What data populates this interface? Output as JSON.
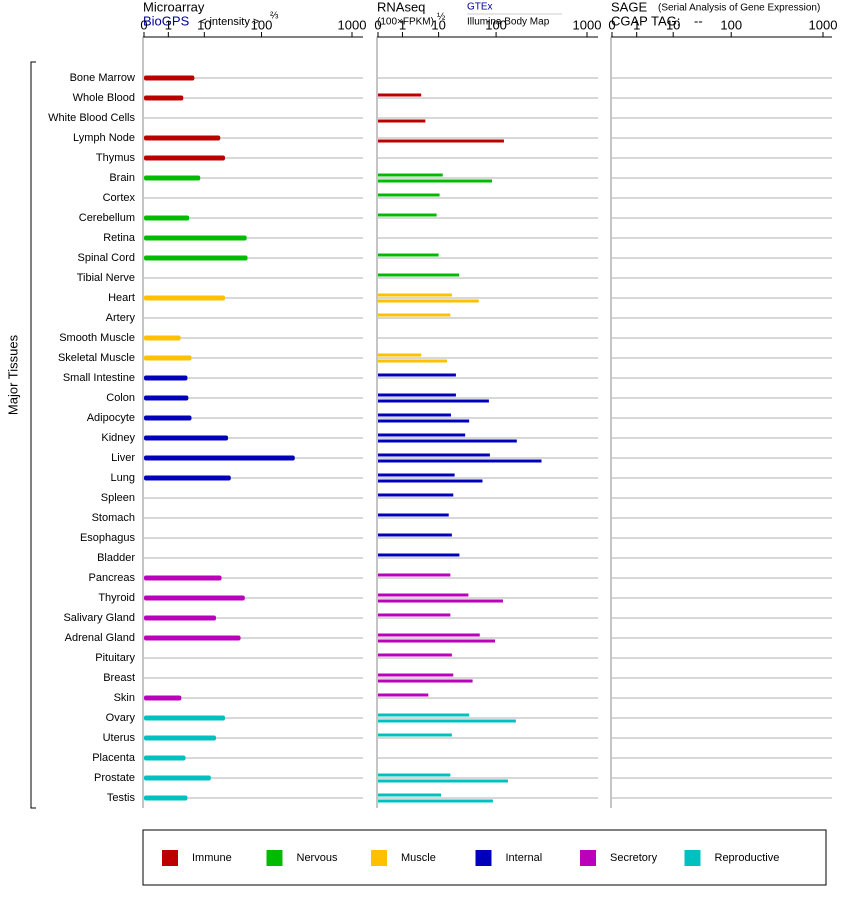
{
  "chart_data": {
    "type": "tissue-bars",
    "y_axis_label": "Major Tissues",
    "categories": [
      "Bone Marrow",
      "Whole Blood",
      "White Blood Cells",
      "Lymph Node",
      "Thymus",
      "Brain",
      "Cortex",
      "Cerebellum",
      "Retina",
      "Spinal Cord",
      "Tibial Nerve",
      "Heart",
      "Artery",
      "Smooth Muscle",
      "Skeletal Muscle",
      "Small Intestine",
      "Colon",
      "Adipocyte",
      "Kidney",
      "Liver",
      "Lung",
      "Spleen",
      "Stomach",
      "Esophagus",
      "Bladder",
      "Pancreas",
      "Thyroid",
      "Salivary Gland",
      "Adrenal Gland",
      "Pituitary",
      "Breast",
      "Skin",
      "Ovary",
      "Uterus",
      "Placenta",
      "Prostate",
      "Testis"
    ],
    "category_groups": [
      "Immune",
      "Immune",
      "Immune",
      "Immune",
      "Immune",
      "Nervous",
      "Nervous",
      "Nervous",
      "Nervous",
      "Nervous",
      "Nervous",
      "Muscle",
      "Muscle",
      "Muscle",
      "Muscle",
      "Internal",
      "Internal",
      "Internal",
      "Internal",
      "Internal",
      "Internal",
      "Internal",
      "Internal",
      "Internal",
      "Internal",
      "Secretory",
      "Secretory",
      "Secretory",
      "Secretory",
      "Secretory",
      "Secretory",
      "Secretory",
      "Reproductive",
      "Reproductive",
      "Reproductive",
      "Reproductive",
      "Reproductive"
    ],
    "legend": [
      {
        "name": "Immune",
        "color": "#bb0000"
      },
      {
        "name": "Nervous",
        "color": "#00bb00"
      },
      {
        "name": "Muscle",
        "color": "#ffc000"
      },
      {
        "name": "Internal",
        "color": "#0000bb"
      },
      {
        "name": "Secretory",
        "color": "#bb00bb"
      },
      {
        "name": "Reproductive",
        "color": "#00c0c0"
      }
    ],
    "panels": [
      {
        "title": "Microarray",
        "scale_label": "< intensity >",
        "scale_power": "⅔",
        "xlim": [
          0,
          1000
        ],
        "xticks": [
          0,
          1,
          10,
          100,
          1000
        ],
        "series": [
          {
            "name": "BioGPS",
            "values": [
              5.3,
              2.6,
              null,
              19,
              23,
              7.7,
              null,
              3.8,
              55,
              57,
              null,
              23,
              null,
              2.2,
              4.4,
              3.4,
              3.6,
              4.4,
              26,
              233,
              29,
              null,
              null,
              null,
              null,
              20,
              51,
              16,
              43,
              null,
              null,
              2.3,
              23,
              16,
              3.0,
              13,
              3.4
            ]
          }
        ]
      },
      {
        "title": "RNAseq",
        "scale_label": "(100×FPKM)",
        "scale_power": "½",
        "xlim": [
          0,
          1000
        ],
        "xticks": [
          0,
          1,
          10,
          100,
          1000
        ],
        "series": [
          {
            "name": "GTEx",
            "values": [
              null,
              3.3,
              null,
              null,
              null,
              11.8,
              10.4,
              8.8,
              null,
              10,
              22.8,
              17,
              16,
              null,
              3.3,
              20,
              20,
              16.4,
              29,
              78,
              19,
              18,
              15,
              17,
              23,
              16,
              33,
              16,
              52,
              17,
              18,
              5.2,
              34,
              17,
              null,
              16,
              11
            ]
          },
          {
            "name": "Illumina Body Map",
            "values": [
              null,
              null,
              4.3,
              122,
              null,
              85,
              null,
              null,
              null,
              null,
              null,
              50,
              null,
              null,
              14,
              null,
              75,
              34,
              169,
              316,
              58,
              null,
              null,
              null,
              null,
              null,
              119,
              null,
              96,
              null,
              39,
              null,
              165,
              null,
              null,
              135,
              88
            ]
          }
        ]
      },
      {
        "title": "SAGE",
        "note": "(Serial Analysis of Gene Expression)",
        "tag_label": "CGAP TAG:",
        "tag_value": "--",
        "xlim": [
          0,
          1000
        ],
        "xticks": [
          0,
          1,
          10,
          100,
          1000
        ],
        "series": []
      }
    ]
  }
}
